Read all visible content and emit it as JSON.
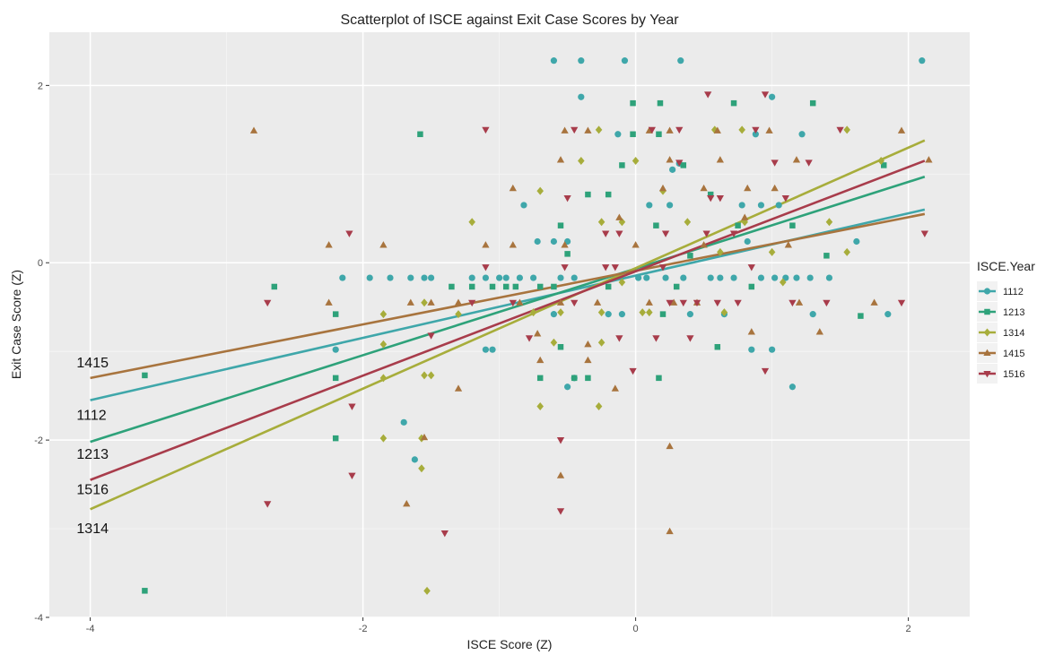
{
  "chart_data": {
    "type": "scatter",
    "title": "Scatterplot of ISCE against Exit Case Scores by Year",
    "xlabel": "ISCE Score (Z)",
    "ylabel": "Exit Case Score (Z)",
    "xlim": [
      -4.3,
      2.45
    ],
    "ylim": [
      -4.0,
      2.6
    ],
    "x_ticks": [
      -4,
      -2,
      0,
      2
    ],
    "y_ticks": [
      -4,
      -2,
      0,
      2
    ],
    "x_tick_labels": [
      "-4",
      "-2",
      "0",
      "2"
    ],
    "y_tick_labels": [
      "-4",
      "-2",
      "0",
      "2"
    ],
    "grid": true,
    "legend": {
      "title": "ISCE.Year",
      "position": "right"
    },
    "series": [
      {
        "name": "1112",
        "color": "#3fa7aa",
        "shape": "circle",
        "line": {
          "x": [
            -4,
            2.12
          ],
          "y": [
            -1.55,
            0.6
          ]
        },
        "line_label": {
          "text": "1112",
          "x": -4.1,
          "y": -1.72
        },
        "points": [
          [
            -0.6,
            2.28
          ],
          [
            -0.4,
            2.28
          ],
          [
            -0.08,
            2.28
          ],
          [
            0.33,
            2.28
          ],
          [
            2.1,
            2.28
          ],
          [
            -0.4,
            1.87
          ],
          [
            1.0,
            1.87
          ],
          [
            -0.13,
            1.45
          ],
          [
            0.88,
            1.45
          ],
          [
            1.22,
            1.45
          ],
          [
            0.27,
            1.05
          ],
          [
            0.32,
            1.12
          ],
          [
            0.1,
            0.65
          ],
          [
            -0.82,
            0.65
          ],
          [
            0.25,
            0.65
          ],
          [
            0.78,
            0.65
          ],
          [
            0.92,
            0.65
          ],
          [
            1.05,
            0.65
          ],
          [
            -0.6,
            0.24
          ],
          [
            -0.5,
            0.24
          ],
          [
            0.82,
            0.24
          ],
          [
            -0.72,
            0.24
          ],
          [
            1.62,
            0.24
          ],
          [
            -2.15,
            -0.17
          ],
          [
            -1.95,
            -0.17
          ],
          [
            -1.8,
            -0.17
          ],
          [
            -1.65,
            -0.17
          ],
          [
            -1.55,
            -0.17
          ],
          [
            -1.5,
            -0.17
          ],
          [
            -1.2,
            -0.17
          ],
          [
            -1.1,
            -0.17
          ],
          [
            -1.0,
            -0.17
          ],
          [
            -0.95,
            -0.17
          ],
          [
            -0.85,
            -0.17
          ],
          [
            -0.75,
            -0.17
          ],
          [
            -0.55,
            -0.17
          ],
          [
            -0.45,
            -0.17
          ],
          [
            0.02,
            -0.17
          ],
          [
            0.08,
            -0.17
          ],
          [
            0.22,
            -0.17
          ],
          [
            0.35,
            -0.17
          ],
          [
            0.55,
            -0.17
          ],
          [
            0.62,
            -0.17
          ],
          [
            0.72,
            -0.17
          ],
          [
            0.92,
            -0.17
          ],
          [
            1.02,
            -0.17
          ],
          [
            1.1,
            -0.17
          ],
          [
            1.18,
            -0.17
          ],
          [
            1.28,
            -0.17
          ],
          [
            1.42,
            -0.17
          ],
          [
            -0.6,
            -0.58
          ],
          [
            -0.2,
            -0.58
          ],
          [
            -0.1,
            -0.58
          ],
          [
            0.4,
            -0.58
          ],
          [
            0.65,
            -0.58
          ],
          [
            1.3,
            -0.58
          ],
          [
            1.85,
            -0.58
          ],
          [
            -2.2,
            -0.98
          ],
          [
            -1.1,
            -0.98
          ],
          [
            -1.05,
            -0.98
          ],
          [
            0.85,
            -0.98
          ],
          [
            1.0,
            -0.98
          ],
          [
            1.15,
            -1.4
          ],
          [
            -0.45,
            -1.3
          ],
          [
            -0.5,
            -1.4
          ],
          [
            -1.7,
            -1.8
          ],
          [
            -1.62,
            -2.22
          ]
        ]
      },
      {
        "name": "1213",
        "color": "#2ea27a",
        "shape": "square",
        "line": {
          "x": [
            -4,
            2.12
          ],
          "y": [
            -2.02,
            0.97
          ]
        },
        "line_label": {
          "text": "1213",
          "x": -4.1,
          "y": -2.16
        },
        "points": [
          [
            -1.58,
            1.45
          ],
          [
            -0.02,
            1.8
          ],
          [
            0.18,
            1.8
          ],
          [
            0.72,
            1.8
          ],
          [
            1.3,
            1.8
          ],
          [
            -0.02,
            1.45
          ],
          [
            0.17,
            1.45
          ],
          [
            0.35,
            1.1
          ],
          [
            1.82,
            1.1
          ],
          [
            -0.1,
            1.1
          ],
          [
            -0.35,
            0.77
          ],
          [
            -0.2,
            0.77
          ],
          [
            0.55,
            0.77
          ],
          [
            -0.55,
            0.42
          ],
          [
            0.15,
            0.42
          ],
          [
            0.75,
            0.42
          ],
          [
            1.15,
            0.42
          ],
          [
            -0.5,
            0.1
          ],
          [
            0.4,
            0.08
          ],
          [
            1.4,
            0.08
          ],
          [
            -2.65,
            -0.27
          ],
          [
            -1.35,
            -0.27
          ],
          [
            -1.2,
            -0.27
          ],
          [
            -1.05,
            -0.27
          ],
          [
            -0.95,
            -0.27
          ],
          [
            -0.88,
            -0.27
          ],
          [
            -0.7,
            -0.27
          ],
          [
            -0.6,
            -0.27
          ],
          [
            -0.2,
            -0.27
          ],
          [
            0.3,
            -0.27
          ],
          [
            0.85,
            -0.27
          ],
          [
            -2.2,
            -0.58
          ],
          [
            0.2,
            -0.58
          ],
          [
            1.65,
            -0.6
          ],
          [
            -0.55,
            -0.95
          ],
          [
            0.6,
            -0.95
          ],
          [
            -2.2,
            -1.3
          ],
          [
            -0.45,
            -1.3
          ],
          [
            -0.35,
            -1.3
          ],
          [
            -0.7,
            -1.3
          ],
          [
            0.17,
            -1.3
          ],
          [
            -3.6,
            -1.27
          ],
          [
            -2.2,
            -1.98
          ],
          [
            -3.6,
            -3.7
          ]
        ]
      },
      {
        "name": "1314",
        "color": "#a7ad3b",
        "shape": "diamond",
        "line": {
          "x": [
            -4,
            2.12
          ],
          "y": [
            -2.78,
            1.38
          ]
        },
        "line_label": {
          "text": "1314",
          "x": -4.1,
          "y": -3.0
        },
        "points": [
          [
            -0.27,
            1.5
          ],
          [
            0.58,
            1.5
          ],
          [
            0.78,
            1.5
          ],
          [
            1.55,
            1.5
          ],
          [
            -0.4,
            1.15
          ],
          [
            0.0,
            1.15
          ],
          [
            1.8,
            1.15
          ],
          [
            -0.7,
            0.81
          ],
          [
            0.2,
            0.81
          ],
          [
            -1.2,
            0.46
          ],
          [
            -0.25,
            0.46
          ],
          [
            -0.1,
            0.46
          ],
          [
            0.38,
            0.46
          ],
          [
            0.8,
            0.46
          ],
          [
            1.42,
            0.46
          ],
          [
            0.62,
            0.12
          ],
          [
            1.0,
            0.12
          ],
          [
            1.55,
            0.12
          ],
          [
            -0.1,
            -0.22
          ],
          [
            1.08,
            -0.22
          ],
          [
            -0.75,
            -0.56
          ],
          [
            -0.55,
            -0.56
          ],
          [
            -0.25,
            -0.56
          ],
          [
            0.05,
            -0.56
          ],
          [
            0.1,
            -0.56
          ],
          [
            0.65,
            -0.56
          ],
          [
            -1.55,
            -0.45
          ],
          [
            -1.3,
            -0.58
          ],
          [
            -1.85,
            -0.58
          ],
          [
            -0.6,
            -0.9
          ],
          [
            -0.25,
            -0.9
          ],
          [
            -1.85,
            -0.92
          ],
          [
            -1.5,
            -1.27
          ],
          [
            -1.55,
            -1.27
          ],
          [
            -1.85,
            -1.3
          ],
          [
            -0.7,
            -1.62
          ],
          [
            -0.27,
            -1.62
          ],
          [
            -1.85,
            -1.98
          ],
          [
            -1.57,
            -1.98
          ],
          [
            -1.57,
            -2.32
          ],
          [
            -1.53,
            -3.7
          ]
        ]
      },
      {
        "name": "1415",
        "color": "#a8743e",
        "shape": "triangle-up",
        "line": {
          "x": [
            -4,
            2.12
          ],
          "y": [
            -1.3,
            0.55
          ]
        },
        "line_label": {
          "text": "1415",
          "x": -4.1,
          "y": -1.13
        },
        "points": [
          [
            -2.8,
            1.49
          ],
          [
            -0.52,
            1.49
          ],
          [
            -0.35,
            1.49
          ],
          [
            0.1,
            1.49
          ],
          [
            0.25,
            1.49
          ],
          [
            0.6,
            1.49
          ],
          [
            0.98,
            1.49
          ],
          [
            1.95,
            1.49
          ],
          [
            -0.55,
            1.16
          ],
          [
            0.25,
            1.16
          ],
          [
            0.62,
            1.16
          ],
          [
            1.18,
            1.16
          ],
          [
            2.15,
            1.16
          ],
          [
            -0.9,
            0.84
          ],
          [
            0.2,
            0.84
          ],
          [
            0.5,
            0.84
          ],
          [
            0.82,
            0.84
          ],
          [
            1.02,
            0.84
          ],
          [
            -0.12,
            0.51
          ],
          [
            0.8,
            0.51
          ],
          [
            -2.25,
            0.2
          ],
          [
            -1.85,
            0.2
          ],
          [
            -1.1,
            0.2
          ],
          [
            -0.9,
            0.2
          ],
          [
            -0.52,
            0.2
          ],
          [
            0.0,
            0.2
          ],
          [
            0.5,
            0.2
          ],
          [
            1.12,
            0.2
          ],
          [
            -2.25,
            -0.45
          ],
          [
            -1.65,
            -0.45
          ],
          [
            -1.5,
            -0.45
          ],
          [
            -1.3,
            -0.45
          ],
          [
            -0.85,
            -0.45
          ],
          [
            -0.55,
            -0.45
          ],
          [
            -0.28,
            -0.45
          ],
          [
            0.1,
            -0.45
          ],
          [
            0.28,
            -0.45
          ],
          [
            0.45,
            -0.45
          ],
          [
            1.2,
            -0.45
          ],
          [
            1.75,
            -0.45
          ],
          [
            -0.72,
            -0.8
          ],
          [
            0.85,
            -0.78
          ],
          [
            1.35,
            -0.78
          ],
          [
            -0.35,
            -0.92
          ],
          [
            -0.7,
            -1.1
          ],
          [
            -0.35,
            -1.1
          ],
          [
            -0.15,
            -1.42
          ],
          [
            -1.3,
            -1.42
          ],
          [
            -1.55,
            -1.97
          ],
          [
            0.25,
            -2.07
          ],
          [
            -0.55,
            -2.4
          ],
          [
            -1.68,
            -2.72
          ],
          [
            0.25,
            -3.03
          ]
        ]
      },
      {
        "name": "1516",
        "color": "#a83c4b",
        "shape": "triangle-down",
        "line": {
          "x": [
            -4,
            2.12
          ],
          "y": [
            -2.45,
            1.15
          ]
        },
        "line_label": {
          "text": "1516",
          "x": -4.1,
          "y": -2.56
        },
        "points": [
          [
            0.53,
            1.9
          ],
          [
            0.95,
            1.9
          ],
          [
            -1.1,
            1.5
          ],
          [
            -0.45,
            1.5
          ],
          [
            0.12,
            1.5
          ],
          [
            0.32,
            1.5
          ],
          [
            0.88,
            1.5
          ],
          [
            1.5,
            1.5
          ],
          [
            0.32,
            1.13
          ],
          [
            1.02,
            1.13
          ],
          [
            1.27,
            1.13
          ],
          [
            -0.5,
            0.73
          ],
          [
            0.55,
            0.73
          ],
          [
            0.62,
            0.73
          ],
          [
            1.1,
            0.73
          ],
          [
            -2.1,
            0.33
          ],
          [
            -0.22,
            0.33
          ],
          [
            -0.12,
            0.33
          ],
          [
            0.22,
            0.33
          ],
          [
            0.52,
            0.33
          ],
          [
            0.72,
            0.33
          ],
          [
            2.12,
            0.33
          ],
          [
            -1.1,
            -0.05
          ],
          [
            -0.52,
            -0.05
          ],
          [
            -0.22,
            -0.05
          ],
          [
            -0.15,
            -0.05
          ],
          [
            0.2,
            -0.05
          ],
          [
            0.85,
            -0.05
          ],
          [
            -2.7,
            -0.45
          ],
          [
            -1.2,
            -0.45
          ],
          [
            -0.9,
            -0.45
          ],
          [
            -0.45,
            -0.45
          ],
          [
            0.25,
            -0.45
          ],
          [
            0.35,
            -0.45
          ],
          [
            0.45,
            -0.45
          ],
          [
            0.6,
            -0.45
          ],
          [
            0.75,
            -0.45
          ],
          [
            1.15,
            -0.45
          ],
          [
            1.4,
            -0.45
          ],
          [
            1.95,
            -0.45
          ],
          [
            -0.78,
            -0.85
          ],
          [
            0.15,
            -0.85
          ],
          [
            0.4,
            -0.85
          ],
          [
            -0.12,
            -0.85
          ],
          [
            -1.5,
            -0.82
          ],
          [
            0.95,
            -1.22
          ],
          [
            -0.02,
            -1.22
          ],
          [
            -2.08,
            -1.62
          ],
          [
            -0.55,
            -2.0
          ],
          [
            -2.08,
            -2.4
          ],
          [
            -2.7,
            -2.72
          ],
          [
            -0.55,
            -2.8
          ],
          [
            -1.4,
            -3.05
          ]
        ]
      }
    ]
  }
}
